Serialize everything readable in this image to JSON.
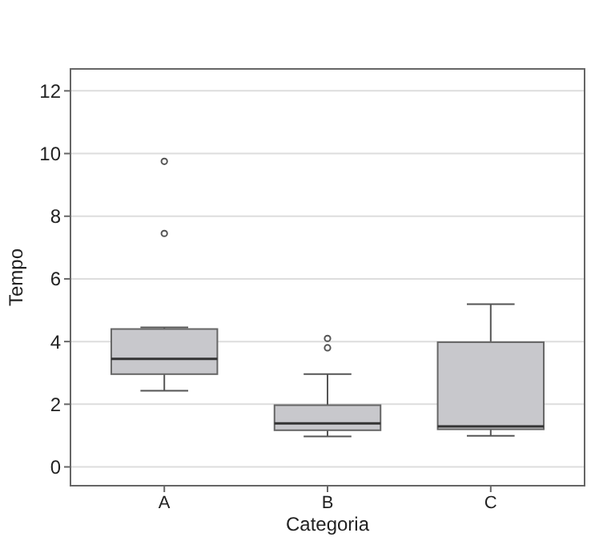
{
  "chart_data": {
    "type": "box",
    "xlabel": "Categoria",
    "ylabel": "Tempo",
    "categories": [
      "A",
      "B",
      "C"
    ],
    "boxes": [
      {
        "low": 2.43,
        "q1": 2.96,
        "median": 3.45,
        "q3": 4.4,
        "high": 4.45,
        "outliers": [
          7.45,
          9.75
        ]
      },
      {
        "low": 0.97,
        "q1": 1.17,
        "median": 1.39,
        "q3": 1.97,
        "high": 2.96,
        "outliers": [
          3.8,
          4.1
        ]
      },
      {
        "low": 0.99,
        "q1": 1.2,
        "median": 1.29,
        "q3": 3.98,
        "high": 5.19
      }
    ],
    "color": "#c8c8cc",
    "ylim": [
      -0.6,
      12.7
    ],
    "yticks": [
      0,
      2,
      4,
      6,
      8,
      10,
      12
    ],
    "grid": "y"
  }
}
